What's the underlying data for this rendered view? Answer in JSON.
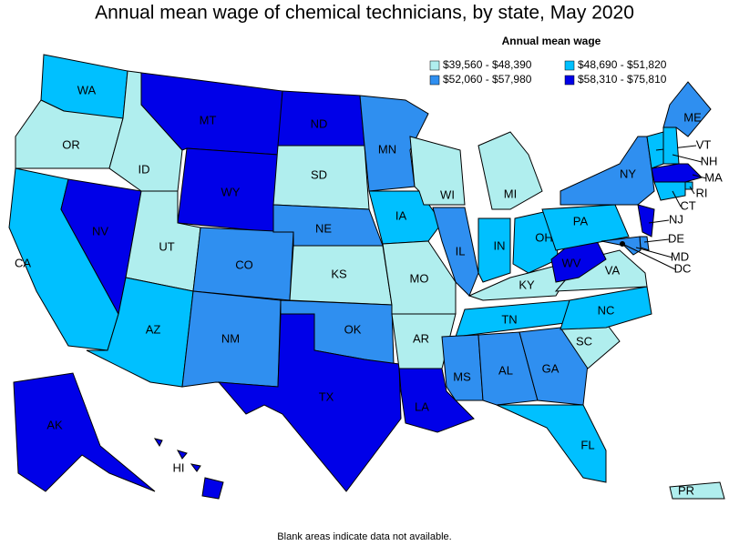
{
  "title": "Annual mean wage of chemical technicians, by state, May 2020",
  "legend": {
    "title": "Annual mean wage",
    "bins": [
      {
        "label": "$39,560 - $48,390",
        "color": "#b0eeee"
      },
      {
        "label": "$48,690 - $51,820",
        "color": "#00c0ff"
      },
      {
        "label": "$52,060 - $57,980",
        "color": "#2f8ff0"
      },
      {
        "label": "$58,310 - $75,810",
        "color": "#0000e8"
      }
    ]
  },
  "states": [
    {
      "label": "WA",
      "color": "#00c0ff"
    },
    {
      "label": "OR",
      "color": "#b0eeee"
    },
    {
      "label": "CA",
      "color": "#00c0ff"
    },
    {
      "label": "NV",
      "color": "#0000e8"
    },
    {
      "label": "ID",
      "color": "#b0eeee"
    },
    {
      "label": "MT",
      "color": "#0000e8"
    },
    {
      "label": "WY",
      "color": "#0000e8"
    },
    {
      "label": "UT",
      "color": "#b0eeee"
    },
    {
      "label": "AZ",
      "color": "#00c0ff"
    },
    {
      "label": "CO",
      "color": "#2f8ff0"
    },
    {
      "label": "NM",
      "color": "#2f8ff0"
    },
    {
      "label": "ND",
      "color": "#0000e8"
    },
    {
      "label": "SD",
      "color": "#b0eeee"
    },
    {
      "label": "NE",
      "color": "#2f8ff0"
    },
    {
      "label": "KS",
      "color": "#b0eeee"
    },
    {
      "label": "OK",
      "color": "#2f8ff0"
    },
    {
      "label": "TX",
      "color": "#0000e8"
    },
    {
      "label": "MN",
      "color": "#2f8ff0"
    },
    {
      "label": "IA",
      "color": "#00c0ff"
    },
    {
      "label": "MO",
      "color": "#b0eeee"
    },
    {
      "label": "AR",
      "color": "#b0eeee"
    },
    {
      "label": "LA",
      "color": "#0000e8"
    },
    {
      "label": "WI",
      "color": "#b0eeee"
    },
    {
      "label": "IL",
      "color": "#2f8ff0"
    },
    {
      "label": "IN",
      "color": "#00c0ff"
    },
    {
      "label": "MI",
      "color": "#b0eeee"
    },
    {
      "label": "OH",
      "color": "#00c0ff"
    },
    {
      "label": "KY",
      "color": "#b0eeee"
    },
    {
      "label": "TN",
      "color": "#00c0ff"
    },
    {
      "label": "MS",
      "color": "#2f8ff0"
    },
    {
      "label": "AL",
      "color": "#2f8ff0"
    },
    {
      "label": "GA",
      "color": "#2f8ff0"
    },
    {
      "label": "FL",
      "color": "#00c0ff"
    },
    {
      "label": "SC",
      "color": "#b0eeee"
    },
    {
      "label": "NC",
      "color": "#00c0ff"
    },
    {
      "label": "VA",
      "color": "#b0eeee"
    },
    {
      "label": "WV",
      "color": "#0000e8"
    },
    {
      "label": "PA",
      "color": "#00c0ff"
    },
    {
      "label": "NY",
      "color": "#2f8ff0"
    },
    {
      "label": "VT",
      "color": "#00c0ff"
    },
    {
      "label": "NH",
      "color": "#00c0ff"
    },
    {
      "label": "ME",
      "color": "#2f8ff0"
    },
    {
      "label": "MA",
      "color": "#0000e8"
    },
    {
      "label": "RI",
      "color": "#00c0ff"
    },
    {
      "label": "CT",
      "color": "#00c0ff"
    },
    {
      "label": "NJ",
      "color": "#0000e8"
    },
    {
      "label": "DE",
      "color": "#2f8ff0"
    },
    {
      "label": "MD",
      "color": "#2f8ff0"
    },
    {
      "label": "DC",
      "color": "#000000"
    },
    {
      "label": "AK",
      "color": "#0000e8"
    },
    {
      "label": "HI",
      "color": "#0000e8"
    },
    {
      "label": "PR",
      "color": "#b0eeee"
    }
  ],
  "note": "Blank areas indicate data not available."
}
